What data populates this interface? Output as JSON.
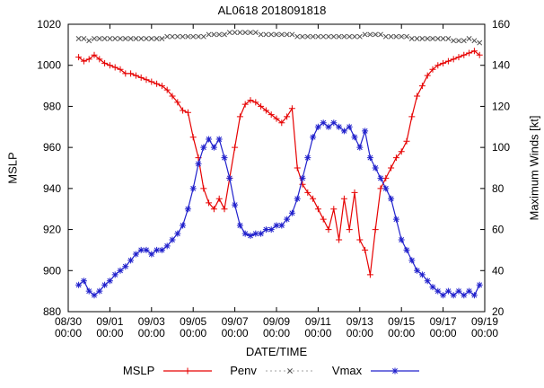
{
  "chart_data": {
    "type": "line",
    "title": "AL0618 2018091818",
    "xlabel": "DATE/TIME",
    "ylabel_left": "MSLP",
    "ylabel_right": "Maximum Winds [kt]",
    "grid": false,
    "legend_position": "bottom-center",
    "y_left_range": [
      880,
      1020
    ],
    "y_left_ticks": [
      880,
      900,
      920,
      940,
      960,
      980,
      1000,
      1020
    ],
    "y_right_range": [
      20,
      160
    ],
    "y_right_ticks": [
      20,
      40,
      60,
      80,
      100,
      120,
      140,
      160
    ],
    "x_range": [
      "08/30 00:00",
      "09/19 00:00"
    ],
    "x_ticks": [
      "08/30 00:00",
      "09/01 00:00",
      "09/03 00:00",
      "09/05 00:00",
      "09/07 00:00",
      "09/09 00:00",
      "09/11 00:00",
      "09/13 00:00",
      "09/15 00:00",
      "09/17 00:00",
      "09/19 00:00"
    ],
    "colors": {
      "axis": "#000000",
      "background": "#ffffff",
      "mslp": "#e60000",
      "penv_line": "#b3b3b3",
      "penv_marker": "#505050",
      "vmax": "#2020cc"
    },
    "x": [
      "08/30 12:00",
      "08/30 18:00",
      "08/31 00:00",
      "08/31 06:00",
      "08/31 12:00",
      "08/31 18:00",
      "09/01 00:00",
      "09/01 06:00",
      "09/01 12:00",
      "09/01 18:00",
      "09/02 00:00",
      "09/02 06:00",
      "09/02 12:00",
      "09/02 18:00",
      "09/03 00:00",
      "09/03 06:00",
      "09/03 12:00",
      "09/03 18:00",
      "09/04 00:00",
      "09/04 06:00",
      "09/04 12:00",
      "09/04 18:00",
      "09/05 00:00",
      "09/05 06:00",
      "09/05 12:00",
      "09/05 18:00",
      "09/06 00:00",
      "09/06 06:00",
      "09/06 12:00",
      "09/06 18:00",
      "09/07 00:00",
      "09/07 06:00",
      "09/07 12:00",
      "09/07 18:00",
      "09/08 00:00",
      "09/08 06:00",
      "09/08 12:00",
      "09/08 18:00",
      "09/09 00:00",
      "09/09 06:00",
      "09/09 12:00",
      "09/09 18:00",
      "09/10 00:00",
      "09/10 06:00",
      "09/10 12:00",
      "09/10 18:00",
      "09/11 00:00",
      "09/11 06:00",
      "09/11 12:00",
      "09/11 18:00",
      "09/12 00:00",
      "09/12 06:00",
      "09/12 12:00",
      "09/12 18:00",
      "09/13 00:00",
      "09/13 06:00",
      "09/13 12:00",
      "09/13 18:00",
      "09/14 00:00",
      "09/14 06:00",
      "09/14 12:00",
      "09/14 18:00",
      "09/15 00:00",
      "09/15 06:00",
      "09/15 12:00",
      "09/15 18:00",
      "09/16 00:00",
      "09/16 06:00",
      "09/16 12:00",
      "09/16 18:00",
      "09/17 00:00",
      "09/17 06:00",
      "09/17 12:00",
      "09/17 18:00",
      "09/18 00:00",
      "09/18 06:00",
      "09/18 12:00",
      "09/18 18:00"
    ],
    "series": [
      {
        "name": "MSLP",
        "axis": "left",
        "color": "#e60000",
        "marker": "plus",
        "values": [
          1004,
          1002,
          1003,
          1005,
          1003,
          1001,
          1000,
          999,
          998,
          996,
          996,
          995,
          994,
          993,
          992,
          991,
          990,
          988,
          985,
          982,
          978,
          977,
          965,
          955,
          940,
          933,
          930,
          935,
          930,
          945,
          960,
          975,
          981,
          983,
          982,
          980,
          978,
          976,
          974,
          972,
          975,
          979,
          950,
          942,
          938,
          935,
          930,
          925,
          920,
          930,
          915,
          935,
          920,
          938,
          915,
          910,
          898,
          920,
          940,
          945,
          950,
          955,
          958,
          963,
          975,
          985,
          990,
          995,
          998,
          1000,
          1001,
          1002,
          1003,
          1004,
          1005,
          1006,
          1007,
          1005
        ]
      },
      {
        "name": "Penv",
        "axis": "left",
        "color": "#b3b3b3",
        "marker_color": "#505050",
        "dash": "2,3",
        "marker": "cross",
        "values": [
          1013,
          1013,
          1012,
          1013,
          1013,
          1013,
          1013,
          1013,
          1013,
          1013,
          1013,
          1013,
          1013,
          1013,
          1013,
          1013,
          1013,
          1014,
          1014,
          1014,
          1014,
          1014,
          1014,
          1014,
          1014,
          1015,
          1015,
          1015,
          1015,
          1016,
          1016,
          1016,
          1016,
          1016,
          1016,
          1015,
          1015,
          1015,
          1015,
          1015,
          1015,
          1015,
          1014,
          1014,
          1014,
          1014,
          1014,
          1014,
          1014,
          1014,
          1014,
          1014,
          1014,
          1014,
          1014,
          1015,
          1015,
          1015,
          1015,
          1014,
          1014,
          1014,
          1014,
          1014,
          1013,
          1013,
          1013,
          1013,
          1013,
          1013,
          1013,
          1013,
          1012,
          1012,
          1012,
          1013,
          1012,
          1011
        ]
      },
      {
        "name": "Vmax",
        "axis": "right",
        "color": "#2020cc",
        "marker": "asterisk",
        "values": [
          33,
          35,
          30,
          28,
          30,
          33,
          35,
          38,
          40,
          42,
          45,
          48,
          50,
          50,
          48,
          50,
          50,
          52,
          55,
          58,
          62,
          70,
          80,
          92,
          100,
          104,
          100,
          104,
          95,
          85,
          72,
          62,
          58,
          57,
          58,
          58,
          60,
          60,
          62,
          62,
          65,
          68,
          75,
          85,
          95,
          105,
          110,
          112,
          110,
          112,
          110,
          108,
          110,
          105,
          100,
          108,
          95,
          90,
          85,
          80,
          75,
          65,
          55,
          50,
          45,
          40,
          38,
          35,
          32,
          30,
          28,
          30,
          28,
          30,
          28,
          30,
          28,
          33
        ]
      }
    ]
  }
}
